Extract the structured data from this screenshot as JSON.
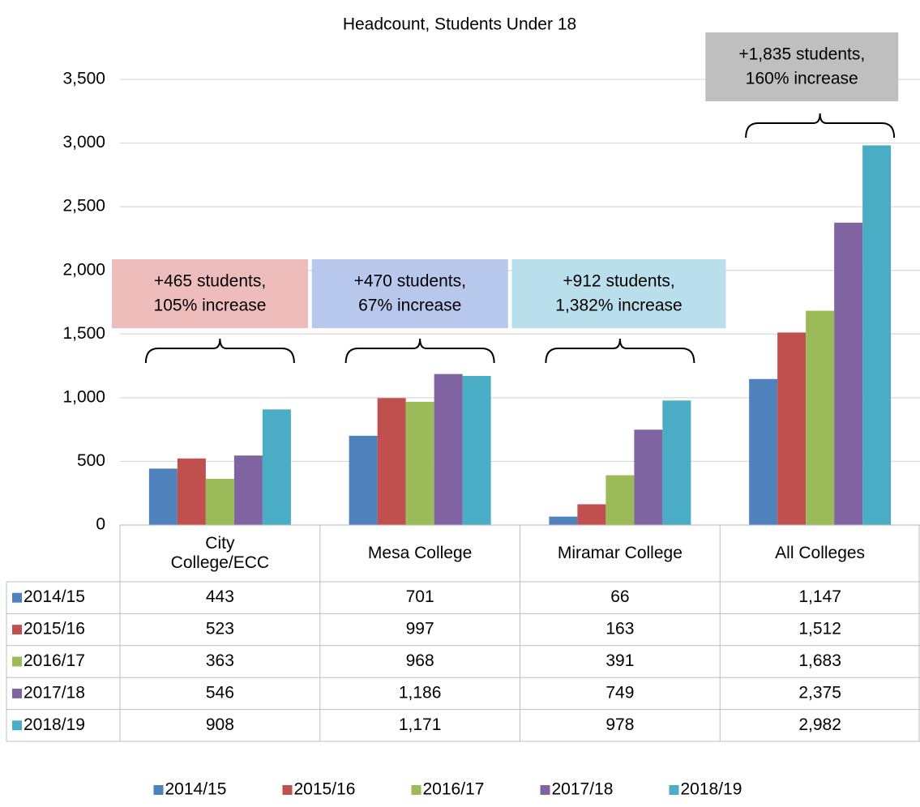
{
  "chart_data": {
    "type": "bar",
    "title": "Headcount, Students Under 18",
    "categories": [
      "City\nCollege/ECC",
      "Mesa College",
      "Miramar College",
      "All Colleges"
    ],
    "series": [
      {
        "name": "2014/15",
        "color": "#4f81bd",
        "values": [
          443,
          701,
          66,
          1147
        ],
        "value_labels": [
          "443",
          "701",
          "66",
          "1,147"
        ]
      },
      {
        "name": "2015/16",
        "color": "#c0504d",
        "values": [
          523,
          997,
          163,
          1512
        ],
        "value_labels": [
          "523",
          "997",
          "163",
          "1,512"
        ]
      },
      {
        "name": "2016/17",
        "color": "#9bbb59",
        "values": [
          363,
          968,
          391,
          1683
        ],
        "value_labels": [
          "363",
          "968",
          "391",
          "1,683"
        ]
      },
      {
        "name": "2017/18",
        "color": "#8064a2",
        "values": [
          546,
          1186,
          749,
          2375
        ],
        "value_labels": [
          "546",
          "1,186",
          "749",
          "2,375"
        ]
      },
      {
        "name": "2018/19",
        "color": "#4bacc6",
        "values": [
          908,
          1171,
          978,
          2982
        ],
        "value_labels": [
          "908",
          "1,171",
          "978",
          "2,982"
        ]
      }
    ],
    "ylim": [
      0,
      3500
    ],
    "yticks": [
      0,
      500,
      {
        "value": 1000,
        "label": "1,000"
      },
      {
        "value": 1500,
        "label": "1,500"
      },
      {
        "value": 2000,
        "label": "2,000"
      },
      {
        "value": 2500,
        "label": "2,500"
      },
      {
        "value": 3000,
        "label": "3,000"
      },
      {
        "value": 3500,
        "label": "3,500"
      }
    ],
    "grid": true,
    "legend": "bottom",
    "annotations": [
      {
        "text": [
          "+465 students,",
          "105% increase"
        ],
        "color": "#efbcbc"
      },
      {
        "text": [
          "+470 students,",
          "67% increase"
        ],
        "color": "#b8c7ec"
      },
      {
        "text": [
          "+912 students,",
          "1,382% increase"
        ],
        "color": "#badfec"
      },
      {
        "text": [
          "+1,835 students,",
          "160% increase"
        ],
        "color": "#bfbfbf"
      }
    ]
  }
}
